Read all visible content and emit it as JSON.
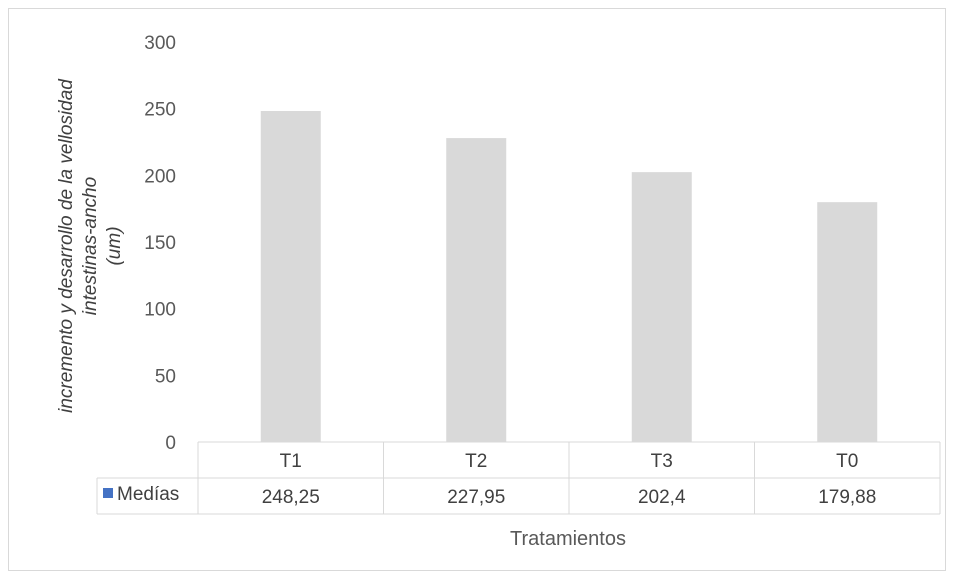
{
  "chart_data": {
    "type": "bar",
    "categories": [
      "T1",
      "T2",
      "T3",
      "T0"
    ],
    "series": [
      {
        "name": "Medías",
        "values": [
          248.25,
          227.95,
          202.4,
          179.88
        ],
        "color": "#d9d9d9",
        "legend_color": "#4472c4"
      }
    ],
    "value_labels": [
      "248,25",
      "227,95",
      "202,4",
      "179,88"
    ],
    "y_ticks": [
      "0",
      "50",
      "100",
      "150",
      "200",
      "250",
      "300"
    ],
    "ylim": [
      0,
      300
    ],
    "ylabel_lines": [
      "incremento y desarrollo de la vellosidad",
      "intestinas-ancho",
      "(um)"
    ],
    "xlabel": "Tratamientos",
    "grid": false,
    "data_table": true
  }
}
